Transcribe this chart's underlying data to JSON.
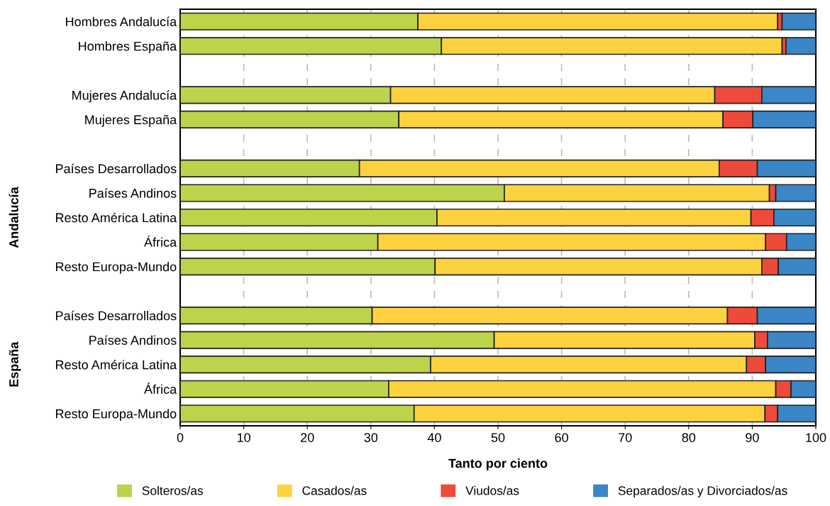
{
  "chart_data": {
    "type": "bar",
    "orientation": "horizontal",
    "stacked": true,
    "categories": [
      "Hombres Andalucía",
      "Hombres España",
      null,
      "Mujeres Andalucía",
      "Mujeres España",
      null,
      "Países Desarrollados",
      "Países Andinos",
      "Resto América Latina",
      "África",
      "Resto Europa-Mundo",
      null,
      "Países Desarrollados",
      "Países Andinos",
      "Resto América Latina",
      "África",
      "Resto Europa-Mundo"
    ],
    "series": [
      {
        "name": "Solteros/as",
        "color": "#bdd34a",
        "values": [
          37.4,
          41.1,
          null,
          33.1,
          34.4,
          null,
          28.2,
          51.0,
          40.4,
          31.1,
          40.1,
          null,
          30.2,
          49.4,
          39.4,
          32.8,
          36.8
        ]
      },
      {
        "name": "Casados/as",
        "color": "#fdd23f",
        "values": [
          56.6,
          53.6,
          null,
          51.0,
          51.0,
          null,
          56.6,
          41.7,
          49.4,
          61.0,
          51.4,
          null,
          55.9,
          41.0,
          49.7,
          60.9,
          55.2
        ]
      },
      {
        "name": "Viudos/as",
        "color": "#ee4a3a",
        "values": [
          0.7,
          0.6,
          null,
          7.4,
          4.7,
          null,
          6.0,
          1.0,
          3.6,
          3.3,
          2.6,
          null,
          4.7,
          2.0,
          3.0,
          2.4,
          2.0
        ]
      },
      {
        "name": "Separados/as y Divorciados/as",
        "color": "#3a86c6",
        "values": [
          5.3,
          4.7,
          null,
          8.5,
          9.9,
          null,
          9.2,
          6.3,
          6.6,
          4.6,
          5.9,
          null,
          9.2,
          7.6,
          7.9,
          3.9,
          6.0
        ]
      }
    ],
    "xlabel": "Tanto por ciento",
    "xlim": [
      0,
      100
    ],
    "xticks": [
      0,
      10,
      20,
      30,
      40,
      50,
      60,
      70,
      80,
      90,
      100
    ],
    "grid": "x",
    "legend": "bottom",
    "annotations": [
      "Andalucía",
      "España"
    ]
  }
}
